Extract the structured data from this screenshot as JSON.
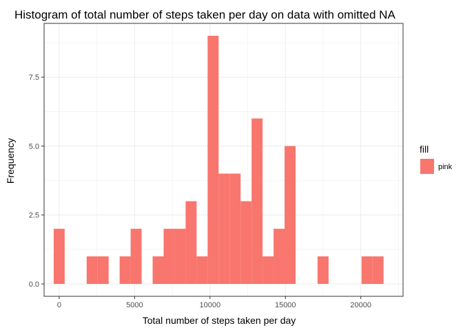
{
  "chart_data": {
    "type": "bar",
    "title": "Histogram of total number of steps taken per day on data with omitted NA",
    "xlabel": "Total number of steps taken per day",
    "ylabel": "Frequency",
    "xlim": [
      -1000,
      22800
    ],
    "ylim": [
      -0.45,
      9.45
    ],
    "x_ticks": [
      0,
      5000,
      10000,
      15000,
      20000
    ],
    "x_tick_labels": [
      "0",
      "5000",
      "10000",
      "15000",
      "20000"
    ],
    "y_ticks": [
      0,
      2.5,
      5,
      7.5
    ],
    "y_tick_labels": [
      "0.0",
      "2.5",
      "5.0",
      "7.5"
    ],
    "grid": true,
    "bar_color": "#F8766D",
    "bin_width": 729,
    "bin_centers": [
      0,
      729,
      1458,
      2187,
      2916,
      3645,
      4374,
      5103,
      5832,
      6561,
      7290,
      8019,
      8748,
      9477,
      10206,
      10935,
      11664,
      12393,
      13122,
      13851,
      14580,
      15309,
      16038,
      16767,
      17496,
      18225,
      18954,
      19683,
      20412,
      21141
    ],
    "counts": [
      2,
      0,
      0,
      1,
      1,
      0,
      1,
      2,
      0,
      1,
      2,
      2,
      3,
      1,
      9,
      4,
      4,
      3,
      6,
      1,
      2,
      5,
      0,
      0,
      1,
      0,
      0,
      0,
      1,
      1
    ],
    "legend": {
      "title": "fill",
      "position": "right",
      "entries": [
        {
          "label": "pink",
          "color": "#F8766D"
        }
      ]
    }
  }
}
